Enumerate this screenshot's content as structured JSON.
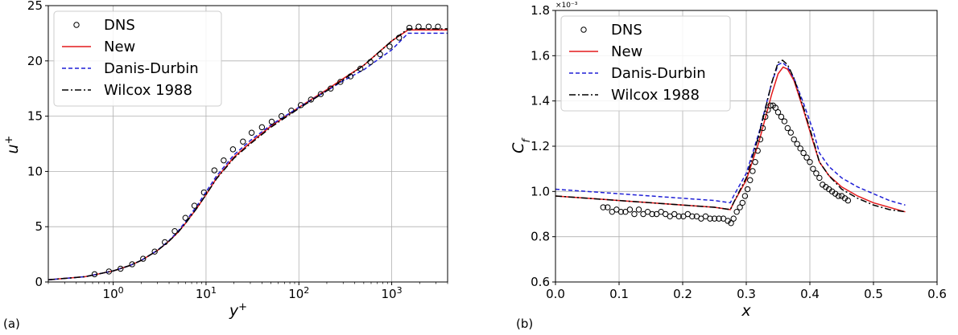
{
  "chart_data": [
    {
      "type": "line",
      "panel_label": "(a)",
      "xlabel": "y",
      "xlabel_sup": "+",
      "ylabel": "u",
      "ylabel_sup": "+",
      "xscale": "log",
      "xlim": [
        0.2,
        4000
      ],
      "ylim": [
        0,
        25
      ],
      "xticks": [
        1,
        10,
        100,
        1000
      ],
      "xtick_labels": [
        {
          "base": "10",
          "exp": "0"
        },
        {
          "base": "10",
          "exp": "1"
        },
        {
          "base": "10",
          "exp": "2"
        },
        {
          "base": "10",
          "exp": "3"
        }
      ],
      "yticks": [
        0,
        5,
        10,
        15,
        20,
        25
      ],
      "ytick_labels": [
        "0",
        "5",
        "10",
        "15",
        "20",
        "25"
      ],
      "grid": true,
      "legend_position": "top-left",
      "legend": [
        "DNS",
        "New",
        "Danis-Durbin",
        "Wilcox 1988"
      ],
      "colors": {
        "DNS": "#000000",
        "New": "#e31a1c",
        "Danis-Durbin": "#1f1fd6",
        "Wilcox 1988": "#000000"
      },
      "series": [
        {
          "name": "DNS",
          "style": "markers",
          "x": [
            0.63,
            0.9,
            1.2,
            1.6,
            2.1,
            2.8,
            3.6,
            4.6,
            6.0,
            7.5,
            9.5,
            12.3,
            15.5,
            19.5,
            25,
            31,
            40,
            51,
            65,
            83,
            105,
            135,
            172,
            220,
            280,
            360,
            460,
            590,
            750,
            950,
            1200,
            1550,
            1950,
            2500,
            3150
          ],
          "y": [
            0.7,
            0.95,
            1.2,
            1.6,
            2.1,
            2.75,
            3.6,
            4.6,
            5.8,
            6.9,
            8.1,
            10.1,
            11.0,
            12.0,
            12.7,
            13.5,
            14.0,
            14.5,
            15.0,
            15.5,
            16.0,
            16.5,
            17.0,
            17.5,
            18.1,
            18.6,
            19.3,
            19.9,
            20.6,
            21.3,
            22.1,
            23.0,
            23.1,
            23.1,
            23.1
          ]
        },
        {
          "name": "New",
          "style": "solid",
          "x": [
            0.2,
            0.5,
            1,
            1.5,
            2,
            3,
            4,
            5,
            6,
            8,
            10,
            13,
            20,
            30,
            50,
            100,
            200,
            300,
            500,
            1000,
            1500,
            4000
          ],
          "y": [
            0.2,
            0.48,
            1.0,
            1.48,
            1.95,
            2.85,
            3.7,
            4.5,
            5.3,
            6.7,
            7.9,
            9.4,
            11.3,
            12.6,
            14.1,
            15.8,
            17.4,
            18.4,
            19.6,
            21.8,
            22.8,
            22.8
          ]
        },
        {
          "name": "Danis-Durbin",
          "style": "dashed",
          "x": [
            0.2,
            0.5,
            1,
            1.5,
            2,
            3,
            4,
            5,
            6,
            8,
            10,
            13,
            20,
            30,
            50,
            100,
            200,
            300,
            500,
            1000,
            1500,
            4000
          ],
          "y": [
            0.2,
            0.48,
            1.0,
            1.48,
            1.95,
            2.87,
            3.75,
            4.6,
            5.45,
            6.9,
            8.15,
            9.6,
            11.5,
            12.8,
            14.2,
            15.8,
            17.3,
            18.2,
            19.2,
            21.0,
            22.5,
            22.5
          ]
        },
        {
          "name": "Wilcox 1988",
          "style": "dashdot",
          "x": [
            0.2,
            0.5,
            1,
            1.5,
            2,
            3,
            4,
            5,
            6,
            8,
            10,
            13,
            20,
            30,
            50,
            100,
            200,
            300,
            500,
            1000,
            1500,
            4000
          ],
          "y": [
            0.2,
            0.48,
            1.0,
            1.48,
            1.95,
            2.85,
            3.7,
            4.5,
            5.3,
            6.7,
            7.9,
            9.35,
            11.2,
            12.5,
            14.0,
            15.7,
            17.3,
            18.3,
            19.6,
            21.8,
            22.9,
            22.9
          ]
        }
      ]
    },
    {
      "type": "line",
      "panel_label": "(b)",
      "xlabel": "x",
      "ylabel": "C",
      "ylabel_sub": "f",
      "scale_note": "×10⁻³",
      "xlim": [
        0.0,
        0.6
      ],
      "ylim": [
        0.6,
        1.8
      ],
      "xticks": [
        0.0,
        0.1,
        0.2,
        0.3,
        0.4,
        0.5,
        0.6
      ],
      "xtick_labels": [
        "0.0",
        "0.1",
        "0.2",
        "0.3",
        "0.4",
        "0.5",
        "0.6"
      ],
      "yticks": [
        0.6,
        0.8,
        1.0,
        1.2,
        1.4,
        1.6,
        1.8
      ],
      "ytick_labels": [
        "0.6",
        "0.8",
        "1.0",
        "1.2",
        "1.4",
        "1.6",
        "1.8"
      ],
      "grid": true,
      "legend_position": "top-left",
      "legend": [
        "DNS",
        "New",
        "Danis-Durbin",
        "Wilcox 1988"
      ],
      "colors": {
        "DNS": "#000000",
        "New": "#e31a1c",
        "Danis-Durbin": "#1f1fd6",
        "Wilcox 1988": "#000000"
      },
      "series": [
        {
          "name": "DNS",
          "style": "markers",
          "x": [
            0.075,
            0.082,
            0.089,
            0.096,
            0.103,
            0.11,
            0.117,
            0.124,
            0.131,
            0.138,
            0.145,
            0.152,
            0.159,
            0.166,
            0.173,
            0.18,
            0.187,
            0.194,
            0.201,
            0.208,
            0.215,
            0.222,
            0.229,
            0.236,
            0.243,
            0.25,
            0.257,
            0.264,
            0.271,
            0.276,
            0.28,
            0.285,
            0.29,
            0.294,
            0.298,
            0.302,
            0.306,
            0.31,
            0.314,
            0.318,
            0.322,
            0.326,
            0.33,
            0.334,
            0.338,
            0.342,
            0.346,
            0.35,
            0.355,
            0.36,
            0.365,
            0.37,
            0.375,
            0.38,
            0.385,
            0.39,
            0.395,
            0.4,
            0.405,
            0.41,
            0.415,
            0.42,
            0.425,
            0.43,
            0.435,
            0.44,
            0.445,
            0.45,
            0.455,
            0.46
          ],
          "y": [
            0.93,
            0.93,
            0.91,
            0.92,
            0.91,
            0.91,
            0.92,
            0.9,
            0.92,
            0.9,
            0.91,
            0.9,
            0.9,
            0.91,
            0.9,
            0.89,
            0.9,
            0.89,
            0.89,
            0.9,
            0.89,
            0.89,
            0.88,
            0.89,
            0.88,
            0.88,
            0.88,
            0.88,
            0.87,
            0.86,
            0.88,
            0.91,
            0.93,
            0.95,
            0.98,
            1.01,
            1.05,
            1.09,
            1.13,
            1.18,
            1.23,
            1.28,
            1.33,
            1.36,
            1.38,
            1.38,
            1.37,
            1.35,
            1.33,
            1.31,
            1.28,
            1.26,
            1.23,
            1.21,
            1.19,
            1.17,
            1.15,
            1.13,
            1.1,
            1.08,
            1.06,
            1.03,
            1.02,
            1.01,
            1.0,
            0.99,
            0.98,
            0.98,
            0.97,
            0.96
          ]
        },
        {
          "name": "New",
          "style": "solid",
          "x": [
            0.0,
            0.05,
            0.1,
            0.15,
            0.2,
            0.25,
            0.275,
            0.28,
            0.3,
            0.32,
            0.34,
            0.35,
            0.358,
            0.365,
            0.375,
            0.39,
            0.405,
            0.415,
            0.43,
            0.45,
            0.475,
            0.5,
            0.525,
            0.55
          ],
          "y": [
            0.98,
            0.97,
            0.96,
            0.95,
            0.94,
            0.93,
            0.92,
            0.95,
            1.05,
            1.22,
            1.43,
            1.52,
            1.55,
            1.54,
            1.49,
            1.36,
            1.22,
            1.13,
            1.07,
            1.02,
            0.98,
            0.95,
            0.93,
            0.91
          ]
        },
        {
          "name": "Danis-Durbin",
          "style": "dashed",
          "x": [
            0.0,
            0.05,
            0.1,
            0.15,
            0.2,
            0.25,
            0.275,
            0.28,
            0.3,
            0.32,
            0.34,
            0.35,
            0.357,
            0.365,
            0.375,
            0.39,
            0.405,
            0.415,
            0.43,
            0.45,
            0.475,
            0.5,
            0.525,
            0.55
          ],
          "y": [
            1.01,
            1.0,
            0.99,
            0.98,
            0.97,
            0.96,
            0.95,
            0.98,
            1.08,
            1.26,
            1.48,
            1.56,
            1.57,
            1.55,
            1.5,
            1.39,
            1.27,
            1.17,
            1.11,
            1.06,
            1.02,
            0.99,
            0.96,
            0.94
          ]
        },
        {
          "name": "Wilcox 1988",
          "style": "dashdot",
          "x": [
            0.0,
            0.05,
            0.1,
            0.15,
            0.2,
            0.25,
            0.275,
            0.28,
            0.3,
            0.32,
            0.34,
            0.35,
            0.357,
            0.365,
            0.375,
            0.39,
            0.405,
            0.415,
            0.43,
            0.45,
            0.475,
            0.5,
            0.525,
            0.55
          ],
          "y": [
            0.98,
            0.97,
            0.96,
            0.95,
            0.94,
            0.93,
            0.92,
            0.95,
            1.06,
            1.25,
            1.48,
            1.57,
            1.58,
            1.56,
            1.5,
            1.37,
            1.23,
            1.13,
            1.07,
            1.01,
            0.97,
            0.94,
            0.92,
            0.91
          ]
        }
      ]
    }
  ]
}
